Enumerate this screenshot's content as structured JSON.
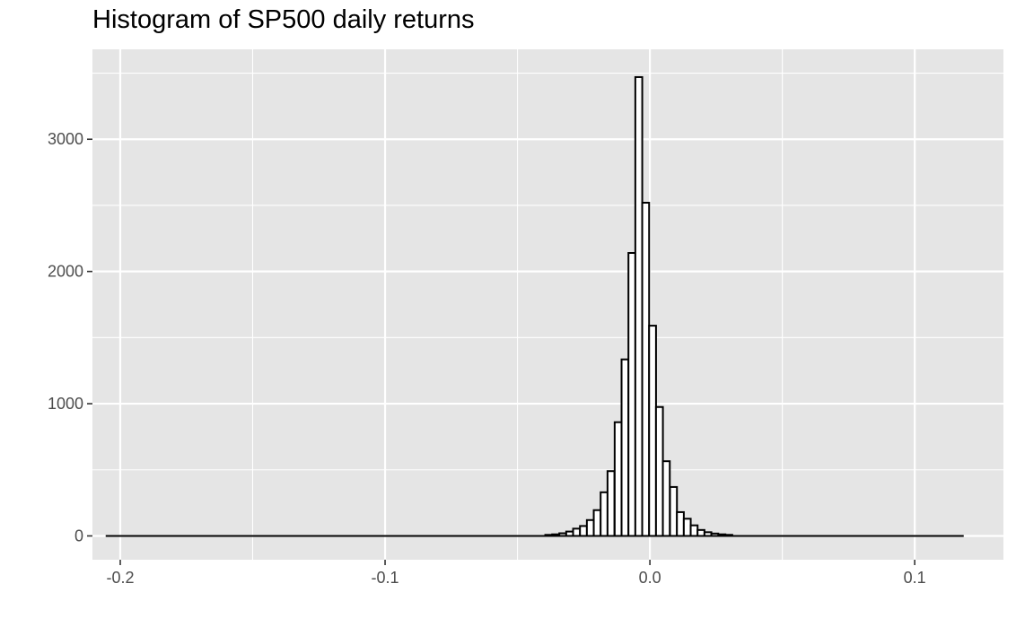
{
  "chart_data": {
    "type": "bar",
    "title": "Histogram of SP500 daily returns",
    "xlabel": "",
    "ylabel": "",
    "xlim": [
      -0.2105,
      0.1335
    ],
    "ylim": [
      -180,
      3680
    ],
    "x_ticks": [
      -0.2,
      -0.1,
      0.0,
      0.1
    ],
    "x_tick_labels": [
      "-0.2",
      "-0.1",
      "0.0",
      "0.1"
    ],
    "y_ticks": [
      0,
      1000,
      2000,
      3000
    ],
    "y_tick_labels": [
      "0",
      "1000",
      "2000",
      "3000"
    ],
    "grid": true,
    "bin_width": 0.00261,
    "bins": [
      {
        "x": -0.0395,
        "count": 8
      },
      {
        "x": -0.0369,
        "count": 12
      },
      {
        "x": -0.0342,
        "count": 20
      },
      {
        "x": -0.0316,
        "count": 33
      },
      {
        "x": -0.029,
        "count": 55
      },
      {
        "x": -0.0264,
        "count": 75
      },
      {
        "x": -0.0238,
        "count": 120
      },
      {
        "x": -0.0212,
        "count": 195
      },
      {
        "x": -0.0186,
        "count": 330
      },
      {
        "x": -0.016,
        "count": 490
      },
      {
        "x": -0.0133,
        "count": 860
      },
      {
        "x": -0.0107,
        "count": 1335
      },
      {
        "x": -0.0081,
        "count": 2140
      },
      {
        "x": -0.0055,
        "count": 3470
      },
      {
        "x": -0.0029,
        "count": 2520
      },
      {
        "x": -0.0003,
        "count": 1590
      },
      {
        "x": 0.0023,
        "count": 975
      },
      {
        "x": 0.0049,
        "count": 565
      },
      {
        "x": 0.0076,
        "count": 370
      },
      {
        "x": 0.0102,
        "count": 180
      },
      {
        "x": 0.0128,
        "count": 130
      },
      {
        "x": 0.0154,
        "count": 80
      },
      {
        "x": 0.018,
        "count": 45
      },
      {
        "x": 0.0206,
        "count": 28
      },
      {
        "x": 0.0232,
        "count": 18
      },
      {
        "x": 0.0259,
        "count": 12
      },
      {
        "x": 0.0285,
        "count": 8
      }
    ],
    "x_range": [
      -0.2055,
      0.1185
    ],
    "colors": {
      "panel": "#e5e5e5",
      "grid": "#ffffff",
      "bar_fill": "#ffffff",
      "bar_stroke": "#000000"
    }
  }
}
